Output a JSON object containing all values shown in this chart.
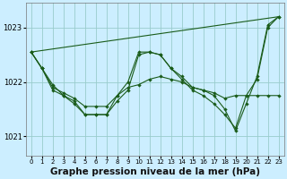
{
  "title": "Graphe pression niveau de la mer (hPa)",
  "bg_color": "#cceeff",
  "grid_color": "#99cccc",
  "line_color": "#1a5c1a",
  "xlim": [
    -0.5,
    23.5
  ],
  "ylim": [
    1020.65,
    1023.45
  ],
  "yticks": [
    1021,
    1022,
    1023
  ],
  "xticks": [
    0,
    1,
    2,
    3,
    4,
    5,
    6,
    7,
    8,
    9,
    10,
    11,
    12,
    13,
    14,
    15,
    16,
    17,
    18,
    19,
    20,
    21,
    22,
    23
  ],
  "series_trend_x": [
    0,
    23
  ],
  "series_trend_y": [
    1022.55,
    1023.2
  ],
  "series_main_x": [
    0,
    1,
    2,
    3,
    4,
    5,
    6,
    7,
    8,
    9,
    10,
    11,
    12,
    13,
    14,
    15,
    16,
    17,
    18,
    19,
    20,
    21,
    22,
    23
  ],
  "series_main_y": [
    1022.55,
    1022.25,
    1021.85,
    1021.75,
    1021.6,
    1021.4,
    1021.4,
    1021.4,
    1021.65,
    1021.85,
    1022.5,
    1022.55,
    1022.5,
    1022.25,
    1022.1,
    1021.9,
    1021.85,
    1021.75,
    1021.5,
    1021.1,
    1021.6,
    1022.1,
    1023.05,
    1023.2
  ],
  "series_wave_x": [
    0,
    1,
    2,
    3,
    4,
    5,
    6,
    7,
    8,
    9,
    10,
    11,
    12,
    13,
    14,
    15,
    16,
    17,
    18,
    19,
    20,
    21,
    22,
    23
  ],
  "series_wave_y": [
    1022.55,
    1022.25,
    1021.95,
    1021.75,
    1021.65,
    1021.4,
    1021.4,
    1021.4,
    1021.75,
    1022.0,
    1022.55,
    1022.55,
    1022.5,
    1022.25,
    1022.05,
    1021.85,
    1021.75,
    1021.6,
    1021.4,
    1021.15,
    1021.75,
    1022.05,
    1023.0,
    1023.2
  ],
  "series_flat_x": [
    0,
    1,
    2,
    3,
    4,
    5,
    6,
    7,
    8,
    9,
    10,
    11,
    12,
    13,
    14,
    15,
    16,
    17,
    18,
    19,
    20,
    21,
    22,
    23
  ],
  "series_flat_y": [
    1022.55,
    1022.25,
    1021.9,
    1021.8,
    1021.7,
    1021.55,
    1021.55,
    1021.55,
    1021.75,
    1021.9,
    1021.95,
    1022.05,
    1022.1,
    1022.05,
    1022.0,
    1021.9,
    1021.85,
    1021.8,
    1021.7,
    1021.75,
    1021.75,
    1021.75,
    1021.75,
    1021.75
  ],
  "tick_fontsize": 6,
  "title_fontsize": 7.5
}
